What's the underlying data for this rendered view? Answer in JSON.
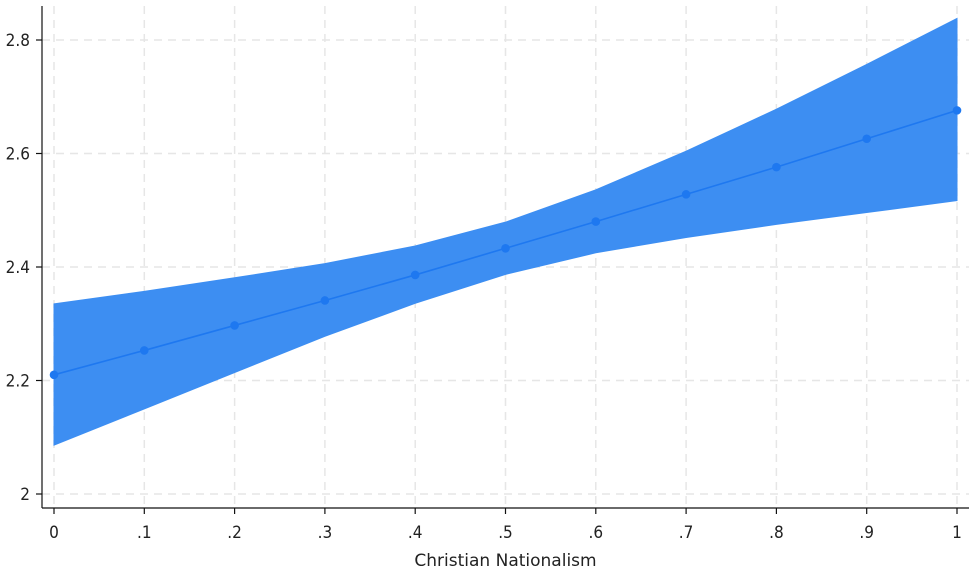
{
  "chart_data": {
    "type": "line",
    "xlabel": "Christian Nationalism",
    "ylabel": "",
    "xlim": [
      0,
      1
    ],
    "ylim": [
      2,
      2.85
    ],
    "x_ticks": [
      0,
      0.1,
      0.2,
      0.3,
      0.4,
      0.5,
      0.6,
      0.7,
      0.8,
      0.9,
      1
    ],
    "x_tick_labels": [
      "0",
      ".1",
      ".2",
      ".3",
      ".4",
      ".5",
      ".6",
      ".7",
      ".8",
      ".9",
      "1"
    ],
    "y_ticks": [
      2,
      2.2,
      2.4,
      2.6,
      2.8
    ],
    "y_tick_labels": [
      "2",
      "2.2",
      "2.4",
      "2.6",
      "2.8"
    ],
    "grid": true,
    "series": [
      {
        "x": [
          0,
          0.1,
          0.2,
          0.3,
          0.4,
          0.5,
          0.6,
          0.7,
          0.8,
          0.9,
          1
        ],
        "y": [
          2.21,
          2.253,
          2.297,
          2.341,
          2.386,
          2.433,
          2.48,
          2.528,
          2.576,
          2.626,
          2.676
        ],
        "ci_lower": [
          2.086,
          2.15,
          2.214,
          2.278,
          2.336,
          2.387,
          2.425,
          2.452,
          2.475,
          2.496,
          2.517
        ],
        "ci_upper": [
          2.335,
          2.357,
          2.381,
          2.406,
          2.437,
          2.479,
          2.536,
          2.604,
          2.678,
          2.757,
          2.838
        ]
      }
    ],
    "colors": {
      "band": "#3d8ef2",
      "line": "#1e78f0",
      "marker": "#1e78f0"
    }
  }
}
